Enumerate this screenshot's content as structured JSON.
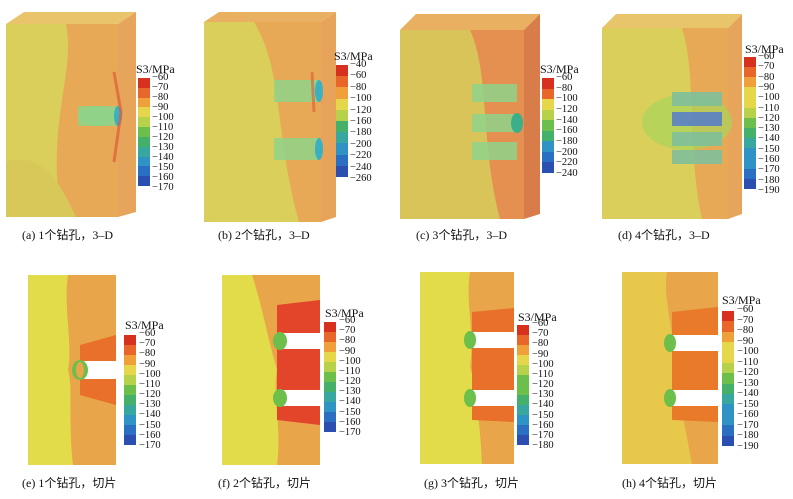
{
  "legend_title": "S3/MPa",
  "colors": [
    "#d7301f",
    "#e8662a",
    "#f0a03a",
    "#e6d74a",
    "#b8d14a",
    "#6cbf4a",
    "#44b06a",
    "#37a7a0",
    "#2f93c6",
    "#2a6fc2",
    "#2a4fb0"
  ],
  "panels": [
    {
      "id": "a",
      "caption": "(a) 1个钻孔，3–D",
      "ticks": [
        "−60",
        "−70",
        "−80",
        "−90",
        "−100",
        "−110",
        "−120",
        "−130",
        "−140",
        "−150",
        "−160",
        "−170"
      ]
    },
    {
      "id": "b",
      "caption": "(b) 2个钻孔，3–D",
      "ticks": [
        "−40",
        "−60",
        "−80",
        "−100",
        "−120",
        "−160",
        "−180",
        "−200",
        "−220",
        "−240",
        "−260"
      ]
    },
    {
      "id": "c",
      "caption": "(c) 3个钻孔，3–D",
      "ticks": [
        "−60",
        "−80",
        "−100",
        "−120",
        "−140",
        "−160",
        "−180",
        "−200",
        "−220",
        "−240"
      ]
    },
    {
      "id": "d",
      "caption": "(d) 4个钻孔，3–D",
      "ticks": [
        "−60",
        "−70",
        "−80",
        "−90",
        "−100",
        "−110",
        "−120",
        "−130",
        "−140",
        "−150",
        "−160",
        "−170",
        "−180",
        "−190"
      ]
    },
    {
      "id": "e",
      "caption": "(e) 1个钻孔，切片",
      "ticks": [
        "−60",
        "−70",
        "−80",
        "−90",
        "−100",
        "−110",
        "−120",
        "−130",
        "−140",
        "−150",
        "−160",
        "−170"
      ]
    },
    {
      "id": "f",
      "caption": "(f) 2个钻孔，切片",
      "ticks": [
        "−60",
        "−70",
        "−80",
        "−90",
        "−100",
        "−110",
        "−120",
        "−130",
        "−140",
        "−150",
        "−160",
        "−170"
      ]
    },
    {
      "id": "g",
      "caption": "(g) 3个钻孔，切片",
      "ticks": [
        "−60",
        "−70",
        "−80",
        "−90",
        "−100",
        "−110",
        "−120",
        "−130",
        "−140",
        "−150",
        "−160",
        "−170",
        "−180"
      ]
    },
    {
      "id": "h",
      "caption": "(h) 4个钻孔，切片",
      "ticks": [
        "−60",
        "−70",
        "−80",
        "−90",
        "−100",
        "−110",
        "−120",
        "−130",
        "−140",
        "−150",
        "−160",
        "−170",
        "−180",
        "−190"
      ]
    }
  ]
}
